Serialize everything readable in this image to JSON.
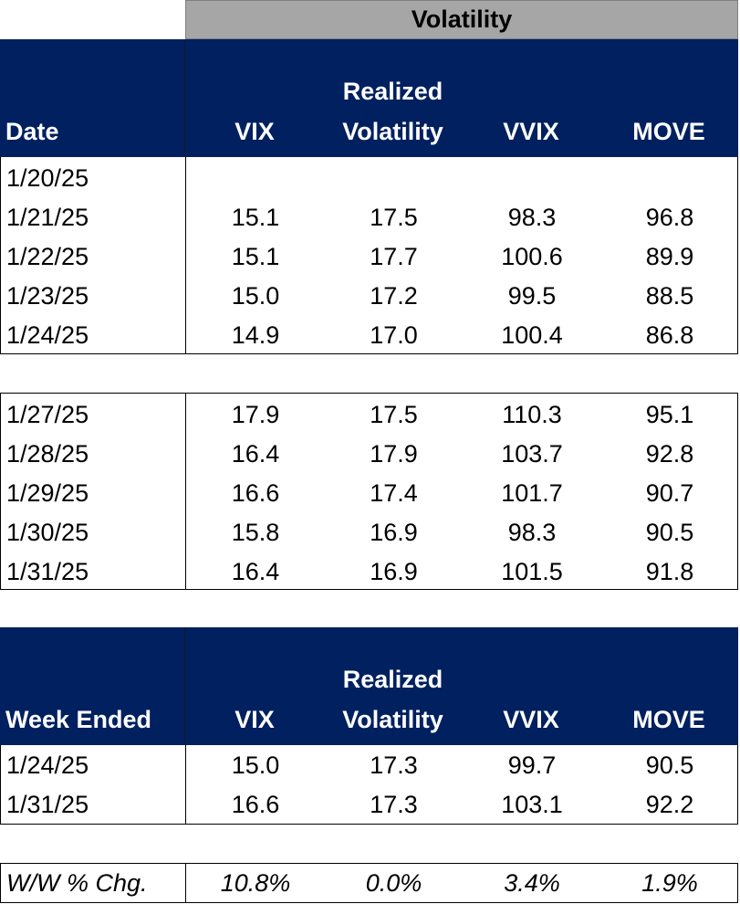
{
  "title": "Volatility",
  "header": {
    "date_label": "Date",
    "vix": "VIX",
    "rv_line1": "Realized",
    "rv_line2": "Volatility",
    "vvix": "VVIX",
    "move": "MOVE"
  },
  "week1": [
    {
      "date": "1/20/25",
      "vix": "",
      "rv": "",
      "vvix": "",
      "move": ""
    },
    {
      "date": "1/21/25",
      "vix": "15.1",
      "rv": "17.5",
      "vvix": "98.3",
      "move": "96.8"
    },
    {
      "date": "1/22/25",
      "vix": "15.1",
      "rv": "17.7",
      "vvix": "100.6",
      "move": "89.9"
    },
    {
      "date": "1/23/25",
      "vix": "15.0",
      "rv": "17.2",
      "vvix": "99.5",
      "move": "88.5"
    },
    {
      "date": "1/24/25",
      "vix": "14.9",
      "rv": "17.0",
      "vvix": "100.4",
      "move": "86.8"
    }
  ],
  "week2": [
    {
      "date": "1/27/25",
      "vix": "17.9",
      "rv": "17.5",
      "vvix": "110.3",
      "move": "95.1"
    },
    {
      "date": "1/28/25",
      "vix": "16.4",
      "rv": "17.9",
      "vvix": "103.7",
      "move": "92.8"
    },
    {
      "date": "1/29/25",
      "vix": "16.6",
      "rv": "17.4",
      "vvix": "101.7",
      "move": "90.7"
    },
    {
      "date": "1/30/25",
      "vix": "15.8",
      "rv": "16.9",
      "vvix": "98.3",
      "move": "90.5"
    },
    {
      "date": "1/31/25",
      "vix": "16.4",
      "rv": "16.9",
      "vvix": "101.5",
      "move": "91.8"
    }
  ],
  "summary_header": {
    "label": "Week Ended",
    "vix": "VIX",
    "rv_line1": "Realized",
    "rv_line2": "Volatility",
    "vvix": "VVIX",
    "move": "MOVE"
  },
  "summary": [
    {
      "date": "1/24/25",
      "vix": "15.0",
      "rv": "17.3",
      "vvix": "99.7",
      "move": "90.5"
    },
    {
      "date": "1/31/25",
      "vix": "16.6",
      "rv": "17.3",
      "vvix": "103.1",
      "move": "92.2"
    }
  ],
  "change": {
    "label": "W/W % Chg.",
    "vix": "10.8%",
    "rv": "0.0%",
    "vvix": "3.4%",
    "move": "1.9%"
  }
}
